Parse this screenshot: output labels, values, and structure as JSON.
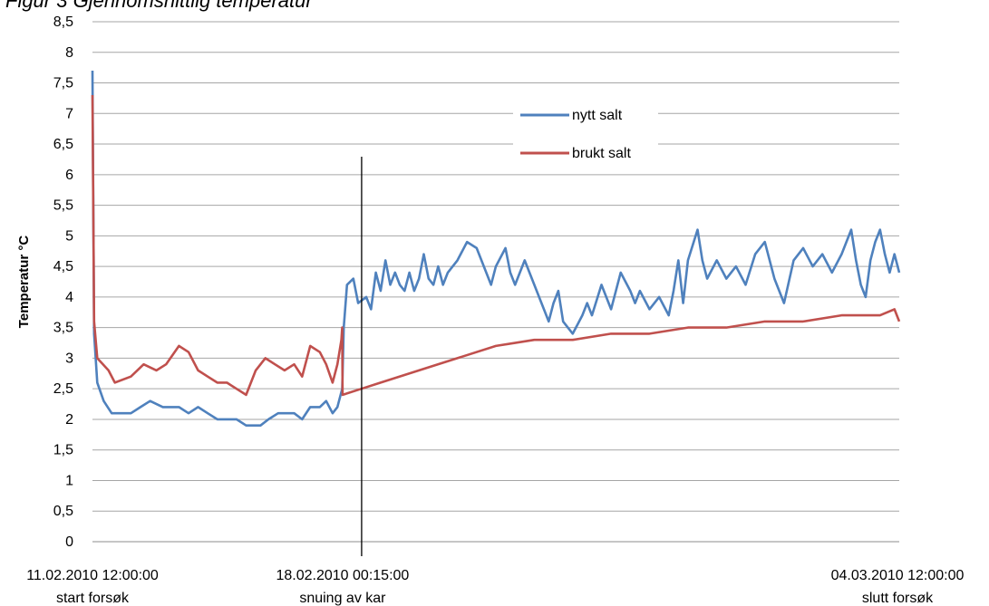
{
  "figure_caption_fragment": "Figur 3 Gjennomsnittlig temperatur",
  "chart_data": {
    "type": "line",
    "ylabel": "Temperatur °C",
    "xlabel": "",
    "title": "",
    "ylim": [
      0,
      8.5
    ],
    "ytick_step": 0.5,
    "ytick_labels": [
      "0",
      "0,5",
      "1",
      "1,5",
      "2",
      "2,5",
      "3",
      "3,5",
      "4",
      "4,5",
      "5",
      "5,5",
      "6",
      "6,5",
      "7",
      "7,5",
      "8",
      "8,5"
    ],
    "grid": true,
    "legend_placement": "top-center",
    "xlim": [
      "2010-02-11T12:00",
      "2010-03-04T12:00"
    ],
    "x_tick_labels": [
      {
        "x": "2010-02-11T12:00",
        "date": "11.02.2010 12:00:00",
        "note": "start forsøk"
      },
      {
        "x": "2010-02-18T00:15",
        "date": "18.02.2010 00:15:00",
        "note": "snuing av kar"
      },
      {
        "x": "2010-03-04T12:00",
        "date": "04.03.2010 12:00:00",
        "note": "slutt forsøk"
      }
    ],
    "event_markers": [
      {
        "x": "2010-02-18T00:15",
        "label": "snuing av kar"
      }
    ],
    "series": [
      {
        "name": "nytt salt",
        "color": "#4F81BD",
        "points": [
          [
            "2010-02-11T12:00",
            7.7
          ],
          [
            "2010-02-11T13:00",
            3.4
          ],
          [
            "2010-02-11T15:00",
            2.6
          ],
          [
            "2010-02-11T19:00",
            2.3
          ],
          [
            "2010-02-12T00:00",
            2.1
          ],
          [
            "2010-02-12T12:00",
            2.1
          ],
          [
            "2010-02-12T18:00",
            2.2
          ],
          [
            "2010-02-13T00:00",
            2.3
          ],
          [
            "2010-02-13T08:00",
            2.2
          ],
          [
            "2010-02-13T18:00",
            2.2
          ],
          [
            "2010-02-14T00:00",
            2.1
          ],
          [
            "2010-02-14T06:00",
            2.2
          ],
          [
            "2010-02-14T12:00",
            2.1
          ],
          [
            "2010-02-14T18:00",
            2.0
          ],
          [
            "2010-02-15T06:00",
            2.0
          ],
          [
            "2010-02-15T12:00",
            1.9
          ],
          [
            "2010-02-15T21:00",
            1.9
          ],
          [
            "2010-02-16T02:00",
            2.0
          ],
          [
            "2010-02-16T08:00",
            2.1
          ],
          [
            "2010-02-16T18:00",
            2.1
          ],
          [
            "2010-02-16T23:00",
            2.0
          ],
          [
            "2010-02-17T04:00",
            2.2
          ],
          [
            "2010-02-17T10:00",
            2.2
          ],
          [
            "2010-02-17T14:00",
            2.3
          ],
          [
            "2010-02-17T18:00",
            2.1
          ],
          [
            "2010-02-17T21:00",
            2.2
          ],
          [
            "2010-02-18T00:00",
            2.5
          ],
          [
            "2010-02-18T01:00",
            3.5
          ],
          [
            "2010-02-18T03:00",
            4.2
          ],
          [
            "2010-02-18T07:00",
            4.3
          ],
          [
            "2010-02-18T10:00",
            3.9
          ],
          [
            "2010-02-18T15:00",
            4.0
          ],
          [
            "2010-02-18T18:00",
            3.8
          ],
          [
            "2010-02-18T21:00",
            4.4
          ],
          [
            "2010-02-19T00:00",
            4.1
          ],
          [
            "2010-02-19T03:00",
            4.6
          ],
          [
            "2010-02-19T06:00",
            4.2
          ],
          [
            "2010-02-19T09:00",
            4.4
          ],
          [
            "2010-02-19T12:00",
            4.2
          ],
          [
            "2010-02-19T15:00",
            4.1
          ],
          [
            "2010-02-19T18:00",
            4.4
          ],
          [
            "2010-02-19T21:00",
            4.1
          ],
          [
            "2010-02-20T00:00",
            4.3
          ],
          [
            "2010-02-20T03:00",
            4.7
          ],
          [
            "2010-02-20T06:00",
            4.3
          ],
          [
            "2010-02-20T09:00",
            4.2
          ],
          [
            "2010-02-20T12:00",
            4.5
          ],
          [
            "2010-02-20T15:00",
            4.2
          ],
          [
            "2010-02-20T18:00",
            4.4
          ],
          [
            "2010-02-21T00:00",
            4.6
          ],
          [
            "2010-02-21T06:00",
            4.9
          ],
          [
            "2010-02-21T12:00",
            4.8
          ],
          [
            "2010-02-21T18:00",
            4.4
          ],
          [
            "2010-02-21T21:00",
            4.2
          ],
          [
            "2010-02-22T00:00",
            4.5
          ],
          [
            "2010-02-22T06:00",
            4.8
          ],
          [
            "2010-02-22T09:00",
            4.4
          ],
          [
            "2010-02-22T12:00",
            4.2
          ],
          [
            "2010-02-22T18:00",
            4.6
          ],
          [
            "2010-02-23T00:00",
            4.2
          ],
          [
            "2010-02-23T06:00",
            3.8
          ],
          [
            "2010-02-23T09:00",
            3.6
          ],
          [
            "2010-02-23T12:00",
            3.9
          ],
          [
            "2010-02-23T15:00",
            4.1
          ],
          [
            "2010-02-23T18:00",
            3.6
          ],
          [
            "2010-02-24T00:00",
            3.4
          ],
          [
            "2010-02-24T06:00",
            3.7
          ],
          [
            "2010-02-24T09:00",
            3.9
          ],
          [
            "2010-02-24T12:00",
            3.7
          ],
          [
            "2010-02-24T18:00",
            4.2
          ],
          [
            "2010-02-25T00:00",
            3.8
          ],
          [
            "2010-02-25T06:00",
            4.4
          ],
          [
            "2010-02-25T12:00",
            4.1
          ],
          [
            "2010-02-25T15:00",
            3.9
          ],
          [
            "2010-02-25T18:00",
            4.1
          ],
          [
            "2010-02-26T00:00",
            3.8
          ],
          [
            "2010-02-26T06:00",
            4.0
          ],
          [
            "2010-02-26T12:00",
            3.7
          ],
          [
            "2010-02-26T15:00",
            4.1
          ],
          [
            "2010-02-26T18:00",
            4.6
          ],
          [
            "2010-02-26T21:00",
            3.9
          ],
          [
            "2010-02-27T00:00",
            4.6
          ],
          [
            "2010-02-27T06:00",
            5.1
          ],
          [
            "2010-02-27T09:00",
            4.6
          ],
          [
            "2010-02-27T12:00",
            4.3
          ],
          [
            "2010-02-27T18:00",
            4.6
          ],
          [
            "2010-02-28T00:00",
            4.3
          ],
          [
            "2010-02-28T06:00",
            4.5
          ],
          [
            "2010-02-28T12:00",
            4.2
          ],
          [
            "2010-02-28T18:00",
            4.7
          ],
          [
            "2010-03-01T00:00",
            4.9
          ],
          [
            "2010-03-01T06:00",
            4.3
          ],
          [
            "2010-03-01T12:00",
            3.9
          ],
          [
            "2010-03-01T18:00",
            4.6
          ],
          [
            "2010-03-02T00:00",
            4.8
          ],
          [
            "2010-03-02T06:00",
            4.5
          ],
          [
            "2010-03-02T12:00",
            4.7
          ],
          [
            "2010-03-02T18:00",
            4.4
          ],
          [
            "2010-03-03T00:00",
            4.7
          ],
          [
            "2010-03-03T06:00",
            5.1
          ],
          [
            "2010-03-03T09:00",
            4.6
          ],
          [
            "2010-03-03T12:00",
            4.2
          ],
          [
            "2010-03-03T15:00",
            4.0
          ],
          [
            "2010-03-03T18:00",
            4.6
          ],
          [
            "2010-03-03T21:00",
            4.9
          ],
          [
            "2010-03-04T00:00",
            5.1
          ],
          [
            "2010-03-04T03:00",
            4.7
          ],
          [
            "2010-03-04T06:00",
            4.4
          ],
          [
            "2010-03-04T09:00",
            4.7
          ],
          [
            "2010-03-04T12:00",
            4.4
          ]
        ]
      },
      {
        "name": "brukt salt",
        "color": "#C0504D",
        "points": [
          [
            "2010-02-11T12:00",
            7.3
          ],
          [
            "2010-02-11T13:00",
            3.6
          ],
          [
            "2010-02-11T15:00",
            3.0
          ],
          [
            "2010-02-11T22:00",
            2.8
          ],
          [
            "2010-02-12T02:00",
            2.6
          ],
          [
            "2010-02-12T12:00",
            2.7
          ],
          [
            "2010-02-12T20:00",
            2.9
          ],
          [
            "2010-02-13T04:00",
            2.8
          ],
          [
            "2010-02-13T10:00",
            2.9
          ],
          [
            "2010-02-13T18:00",
            3.2
          ],
          [
            "2010-02-14T00:00",
            3.1
          ],
          [
            "2010-02-14T06:00",
            2.8
          ],
          [
            "2010-02-14T12:00",
            2.7
          ],
          [
            "2010-02-14T18:00",
            2.6
          ],
          [
            "2010-02-15T00:00",
            2.6
          ],
          [
            "2010-02-15T06:00",
            2.5
          ],
          [
            "2010-02-15T12:00",
            2.4
          ],
          [
            "2010-02-15T18:00",
            2.8
          ],
          [
            "2010-02-16T00:00",
            3.0
          ],
          [
            "2010-02-16T06:00",
            2.9
          ],
          [
            "2010-02-16T12:00",
            2.8
          ],
          [
            "2010-02-16T18:00",
            2.9
          ],
          [
            "2010-02-16T23:00",
            2.7
          ],
          [
            "2010-02-17T04:00",
            3.2
          ],
          [
            "2010-02-17T10:00",
            3.1
          ],
          [
            "2010-02-17T14:00",
            2.9
          ],
          [
            "2010-02-17T18:00",
            2.6
          ],
          [
            "2010-02-17T21:00",
            2.9
          ],
          [
            "2010-02-17T23:30",
            3.3
          ],
          [
            "2010-02-18T00:00",
            3.5
          ],
          [
            "2010-02-18T00:15",
            2.4
          ],
          [
            "2010-02-18T12:00",
            2.5
          ],
          [
            "2010-02-19T00:00",
            2.6
          ],
          [
            "2010-02-20T00:00",
            2.8
          ],
          [
            "2010-02-21T00:00",
            3.0
          ],
          [
            "2010-02-22T00:00",
            3.2
          ],
          [
            "2010-02-23T00:00",
            3.3
          ],
          [
            "2010-02-24T00:00",
            3.3
          ],
          [
            "2010-02-25T00:00",
            3.4
          ],
          [
            "2010-02-26T00:00",
            3.4
          ],
          [
            "2010-02-27T00:00",
            3.5
          ],
          [
            "2010-02-28T00:00",
            3.5
          ],
          [
            "2010-03-01T00:00",
            3.6
          ],
          [
            "2010-03-02T00:00",
            3.6
          ],
          [
            "2010-03-03T00:00",
            3.7
          ],
          [
            "2010-03-04T00:00",
            3.7
          ],
          [
            "2010-03-04T09:00",
            3.8
          ],
          [
            "2010-03-04T12:00",
            3.6
          ]
        ]
      }
    ]
  }
}
